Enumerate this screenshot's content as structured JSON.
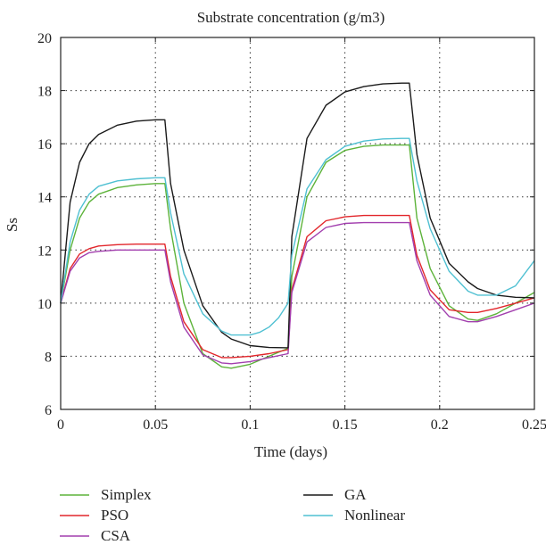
{
  "chart_data": {
    "type": "line",
    "title": "Substrate concentration (g/m3)",
    "xlabel": "Time (days)",
    "ylabel": "Ss",
    "xlim": [
      0,
      0.25
    ],
    "ylim": [
      6,
      20
    ],
    "xticks": [
      0,
      0.05,
      0.1,
      0.15,
      0.2,
      0.25
    ],
    "xtick_labels": [
      "0",
      "0.05",
      "0.1",
      "0.15",
      "0.2",
      "0.25"
    ],
    "yticks": [
      6,
      8,
      10,
      12,
      14,
      16,
      18,
      20
    ],
    "ytick_labels": [
      "6",
      "8",
      "10",
      "12",
      "14",
      "16",
      "18",
      "20"
    ],
    "grid": true,
    "legend_position": "bottom",
    "series": [
      {
        "name": "Simplex",
        "color": "#5db33a",
        "x": [
          0,
          0.005,
          0.01,
          0.015,
          0.02,
          0.03,
          0.04,
          0.05,
          0.055,
          0.058,
          0.065,
          0.075,
          0.085,
          0.09,
          0.1,
          0.11,
          0.12,
          0.122,
          0.13,
          0.14,
          0.15,
          0.16,
          0.17,
          0.18,
          0.184,
          0.188,
          0.195,
          0.205,
          0.215,
          0.22,
          0.23,
          0.24,
          0.25
        ],
        "y": [
          10.0,
          12.0,
          13.2,
          13.8,
          14.1,
          14.35,
          14.45,
          14.5,
          14.5,
          12.8,
          10.0,
          8.1,
          7.6,
          7.55,
          7.7,
          8.0,
          8.3,
          11.0,
          14.0,
          15.3,
          15.75,
          15.9,
          15.95,
          15.95,
          15.95,
          13.2,
          11.3,
          9.9,
          9.4,
          9.35,
          9.6,
          10.0,
          10.4
        ]
      },
      {
        "name": "PSO",
        "color": "#e2262b",
        "x": [
          0,
          0.005,
          0.01,
          0.015,
          0.02,
          0.03,
          0.04,
          0.05,
          0.055,
          0.058,
          0.065,
          0.075,
          0.085,
          0.09,
          0.1,
          0.11,
          0.12,
          0.122,
          0.13,
          0.14,
          0.15,
          0.16,
          0.17,
          0.18,
          0.184,
          0.188,
          0.195,
          0.205,
          0.215,
          0.22,
          0.23,
          0.24,
          0.25
        ],
        "y": [
          10.0,
          11.3,
          11.85,
          12.05,
          12.15,
          12.2,
          12.22,
          12.22,
          12.22,
          11.0,
          9.3,
          8.25,
          7.95,
          7.95,
          8.0,
          8.1,
          8.25,
          10.5,
          12.5,
          13.1,
          13.25,
          13.3,
          13.3,
          13.3,
          13.3,
          11.8,
          10.5,
          9.75,
          9.65,
          9.65,
          9.8,
          10.0,
          10.2
        ]
      },
      {
        "name": "CSA",
        "color": "#a23fae",
        "x": [
          0,
          0.005,
          0.01,
          0.015,
          0.02,
          0.03,
          0.04,
          0.05,
          0.055,
          0.058,
          0.065,
          0.075,
          0.085,
          0.09,
          0.1,
          0.11,
          0.12,
          0.122,
          0.13,
          0.14,
          0.15,
          0.16,
          0.17,
          0.18,
          0.184,
          0.188,
          0.195,
          0.205,
          0.215,
          0.22,
          0.23,
          0.24,
          0.25
        ],
        "y": [
          10.0,
          11.2,
          11.7,
          11.9,
          11.95,
          12.0,
          12.0,
          12.0,
          12.0,
          10.8,
          9.1,
          8.05,
          7.75,
          7.72,
          7.8,
          7.95,
          8.1,
          10.4,
          12.3,
          12.85,
          13.0,
          13.03,
          13.03,
          13.03,
          13.03,
          11.6,
          10.3,
          9.5,
          9.3,
          9.3,
          9.5,
          9.75,
          10.0
        ]
      },
      {
        "name": "GA",
        "color": "#1a1a1a",
        "x": [
          0,
          0.005,
          0.01,
          0.015,
          0.02,
          0.03,
          0.04,
          0.05,
          0.055,
          0.058,
          0.065,
          0.075,
          0.085,
          0.09,
          0.1,
          0.11,
          0.12,
          0.122,
          0.13,
          0.14,
          0.15,
          0.16,
          0.17,
          0.18,
          0.184,
          0.188,
          0.195,
          0.205,
          0.215,
          0.22,
          0.23,
          0.24,
          0.25
        ],
        "y": [
          10.0,
          13.8,
          15.3,
          16.0,
          16.35,
          16.7,
          16.85,
          16.9,
          16.9,
          14.5,
          12.0,
          9.9,
          8.9,
          8.65,
          8.4,
          8.33,
          8.32,
          12.5,
          16.2,
          17.45,
          17.95,
          18.15,
          18.25,
          18.28,
          18.28,
          15.6,
          13.2,
          11.5,
          10.8,
          10.55,
          10.3,
          10.22,
          10.2
        ]
      },
      {
        "name": "Nonlinear",
        "color": "#4fc0d2",
        "x": [
          0,
          0.005,
          0.01,
          0.015,
          0.02,
          0.03,
          0.04,
          0.05,
          0.055,
          0.058,
          0.065,
          0.075,
          0.085,
          0.09,
          0.1,
          0.105,
          0.11,
          0.115,
          0.12,
          0.122,
          0.13,
          0.14,
          0.15,
          0.16,
          0.17,
          0.18,
          0.184,
          0.188,
          0.195,
          0.205,
          0.215,
          0.22,
          0.23,
          0.24,
          0.25
        ],
        "y": [
          10.0,
          12.3,
          13.5,
          14.1,
          14.4,
          14.6,
          14.68,
          14.72,
          14.72,
          13.4,
          11.1,
          9.6,
          8.95,
          8.8,
          8.8,
          8.9,
          9.1,
          9.45,
          10.0,
          11.8,
          14.3,
          15.4,
          15.9,
          16.1,
          16.18,
          16.2,
          16.2,
          14.6,
          12.8,
          11.2,
          10.45,
          10.3,
          10.3,
          10.65,
          11.6
        ]
      }
    ]
  }
}
